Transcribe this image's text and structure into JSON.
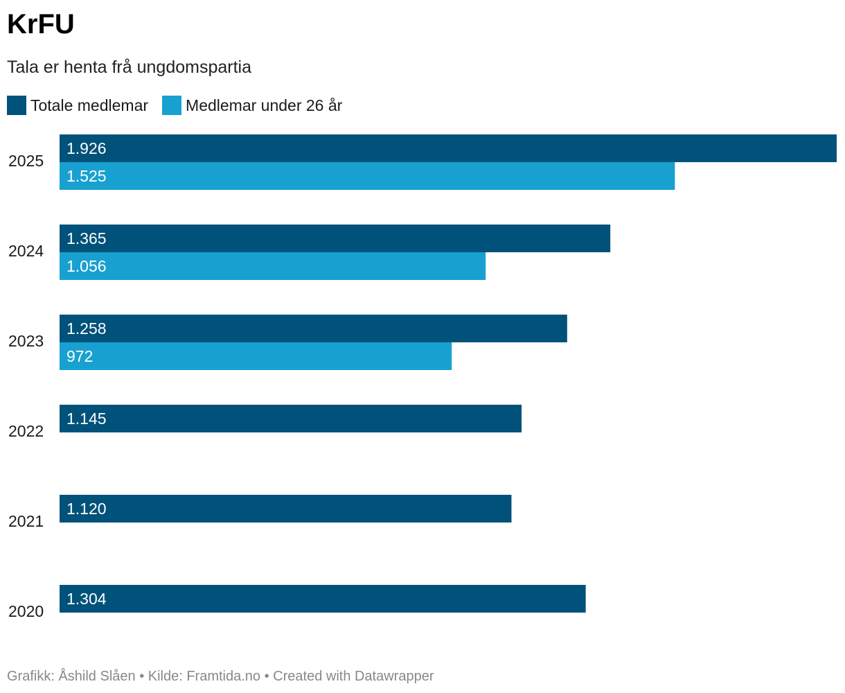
{
  "header": {
    "title": "KrFU",
    "subtitle": "Tala er henta frå ungdomspartia"
  },
  "colors": {
    "total": "#00527a",
    "under26": "#18a1d0",
    "label_text": "#ffffff",
    "axis_text": "#1a1a1a"
  },
  "legend": [
    {
      "label": "Totale medlemar",
      "color": "#00527a"
    },
    {
      "label": "Medlemar under 26 år",
      "color": "#18a1d0"
    }
  ],
  "chart_data": {
    "type": "bar",
    "orientation": "horizontal",
    "title": "KrFU",
    "subtitle": "Tala er henta frå ungdomspartia",
    "categories": [
      "2025",
      "2024",
      "2023",
      "2022",
      "2021",
      "2020"
    ],
    "series": [
      {
        "name": "Totale medlemar",
        "values": [
          1926,
          1365,
          1258,
          1145,
          1120,
          1304
        ],
        "labels": [
          "1.926",
          "1.365",
          "1.258",
          "1.145",
          "1.120",
          "1.304"
        ]
      },
      {
        "name": "Medlemar under 26 år",
        "values": [
          1525,
          1056,
          972,
          null,
          null,
          null
        ],
        "labels": [
          "1.525",
          "1.056",
          "972",
          null,
          null,
          null
        ]
      }
    ],
    "xlim": [
      0,
      1926
    ],
    "grid": false,
    "legend_position": "top-left"
  },
  "footer": {
    "text": "Grafikk: Åshild Slåen • Kilde: Framtida.no • Created with Datawrapper"
  }
}
